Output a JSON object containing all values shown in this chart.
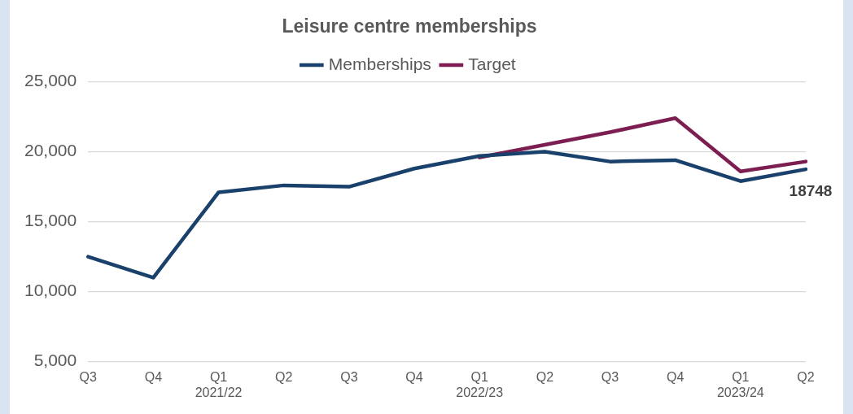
{
  "chart_data": {
    "type": "line",
    "title": "Leisure centre memberships",
    "categories": [
      "Q3",
      "Q4",
      "Q1\n2021/22",
      "Q2",
      "Q3",
      "Q4",
      "Q1\n2022/23",
      "Q2",
      "Q3",
      "Q4",
      "Q1\n2023/24",
      "Q2"
    ],
    "series": [
      {
        "name": "Memberships",
        "color": "#1a416b",
        "values": [
          12500,
          11000,
          17100,
          17600,
          17500,
          18800,
          19700,
          20000,
          19300,
          19400,
          17900,
          18748
        ],
        "value_labels": [
          null,
          null,
          null,
          null,
          null,
          null,
          null,
          null,
          null,
          null,
          null,
          "18748"
        ]
      },
      {
        "name": "Target",
        "color": "#7c1e52",
        "values": [
          null,
          null,
          null,
          null,
          null,
          null,
          19600,
          20500,
          21400,
          22400,
          18600,
          19300
        ]
      }
    ],
    "ylim": [
      5000,
      25000
    ],
    "yticks": [
      {
        "value": 5000,
        "label": "5,000"
      },
      {
        "value": 10000,
        "label": "10,000"
      },
      {
        "value": 15000,
        "label": "15,000"
      },
      {
        "value": 20000,
        "label": "20,000"
      },
      {
        "value": 25000,
        "label": "25,000"
      }
    ],
    "grid": "y",
    "legend": "top",
    "marker": "none",
    "line_style": "solid"
  }
}
